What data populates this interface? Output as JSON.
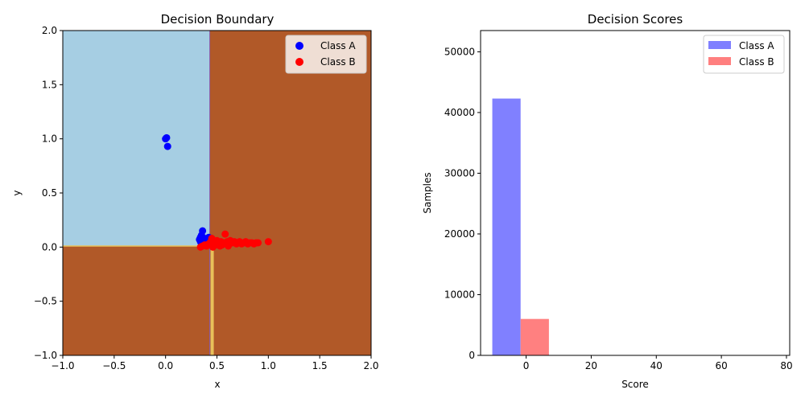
{
  "colors": {
    "region_a": "#a6cee3",
    "region_b": "#b15928",
    "boundary": "#e8c15a",
    "class_a": "#0000ff",
    "class_b": "#ff0000",
    "hist_a": "#8080ff",
    "hist_b": "#ff8080"
  },
  "chart_data": [
    {
      "type": "scatter",
      "title": "Decision Boundary",
      "xlabel": "x",
      "ylabel": "y",
      "xlim": [
        -1.0,
        2.0
      ],
      "ylim": [
        -1.0,
        2.0
      ],
      "xticks": [
        "−1.0",
        "−0.5",
        "0.0",
        "0.5",
        "1.0",
        "1.5",
        "2.0"
      ],
      "yticks": [
        "−1.0",
        "−0.5",
        "0.0",
        "0.5",
        "1.0",
        "1.5",
        "2.0"
      ],
      "xtick_values": [
        -1.0,
        -0.5,
        0.0,
        0.5,
        1.0,
        1.5,
        2.0
      ],
      "ytick_values": [
        -1.0,
        -0.5,
        0.0,
        0.5,
        1.0,
        1.5,
        2.0
      ],
      "grid": false,
      "legend_position": "top-right",
      "decision_regions": {
        "class_a_region": {
          "x": [
            -1.0,
            0.43
          ],
          "y": [
            0.01,
            2.0
          ]
        },
        "boundary_x": 0.43,
        "boundary_y": 0.01
      },
      "series": [
        {
          "name": "Class A",
          "points": [
            [
              0.0,
              1.0
            ],
            [
              0.01,
              1.01
            ],
            [
              0.02,
              0.93
            ],
            [
              0.33,
              0.07
            ],
            [
              0.34,
              0.09
            ],
            [
              0.35,
              0.11
            ],
            [
              0.36,
              0.15
            ],
            [
              0.34,
              0.05
            ],
            [
              0.37,
              0.06
            ],
            [
              0.38,
              0.08
            ],
            [
              0.4,
              0.07
            ],
            [
              0.42,
              0.09
            ],
            [
              0.39,
              0.05
            ],
            [
              0.35,
              0.03
            ]
          ]
        },
        {
          "name": "Class B",
          "points": [
            [
              0.34,
              0.0
            ],
            [
              0.36,
              0.01
            ],
            [
              0.38,
              0.02
            ],
            [
              0.4,
              0.01
            ],
            [
              0.42,
              0.03
            ],
            [
              0.44,
              0.05
            ],
            [
              0.45,
              0.08
            ],
            [
              0.47,
              0.04
            ],
            [
              0.49,
              0.02
            ],
            [
              0.5,
              0.06
            ],
            [
              0.52,
              0.03
            ],
            [
              0.54,
              0.05
            ],
            [
              0.55,
              0.02
            ],
            [
              0.57,
              0.04
            ],
            [
              0.58,
              0.12
            ],
            [
              0.6,
              0.05
            ],
            [
              0.62,
              0.03
            ],
            [
              0.63,
              0.06
            ],
            [
              0.65,
              0.04
            ],
            [
              0.67,
              0.05
            ],
            [
              0.69,
              0.03
            ],
            [
              0.7,
              0.04
            ],
            [
              0.72,
              0.05
            ],
            [
              0.74,
              0.03
            ],
            [
              0.76,
              0.04
            ],
            [
              0.78,
              0.05
            ],
            [
              0.8,
              0.03
            ],
            [
              0.82,
              0.04
            ],
            [
              0.84,
              0.04
            ],
            [
              0.86,
              0.03
            ],
            [
              0.88,
              0.04
            ],
            [
              0.9,
              0.04
            ],
            [
              1.0,
              0.05
            ],
            [
              0.46,
              0.0
            ],
            [
              0.53,
              0.01
            ],
            [
              0.61,
              0.01
            ]
          ]
        }
      ]
    },
    {
      "type": "bar",
      "title": "Decision Scores",
      "xlabel": "Score",
      "ylabel": "Samples",
      "xlim": [
        -14.0,
        81.0
      ],
      "ylim": [
        0,
        53500
      ],
      "xticks": [
        "0",
        "20",
        "40",
        "60",
        "80"
      ],
      "yticks": [
        "0",
        "10000",
        "20000",
        "30000",
        "40000",
        "50000"
      ],
      "xtick_values": [
        0,
        20,
        40,
        60,
        80
      ],
      "ytick_values": [
        0,
        10000,
        20000,
        30000,
        40000,
        50000
      ],
      "grid": false,
      "legend_position": "top-right",
      "series": [
        {
          "name": "Class A",
          "bins": [
            [
              -10.4,
              -1.7,
              42300
            ],
            [
              -1.7,
              7.0,
              250
            ],
            [
              7.0,
              15.7,
              0
            ]
          ]
        },
        {
          "name": "Class B",
          "bins": [
            [
              -10.4,
              -1.7,
              0
            ],
            [
              -1.7,
              7.0,
              6000
            ],
            [
              7.0,
              15.7,
              0
            ]
          ]
        }
      ]
    }
  ]
}
